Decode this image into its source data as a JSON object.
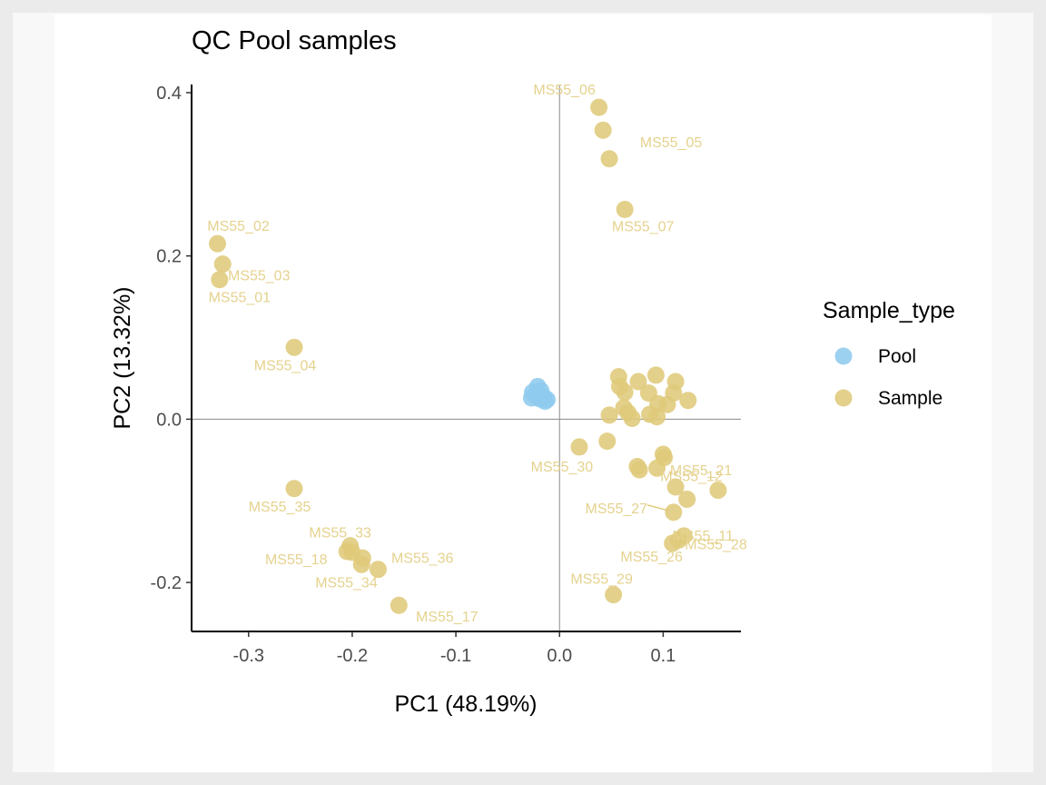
{
  "chart_data": {
    "type": "scatter",
    "title": "QC Pool samples",
    "xlabel": "PC1 (48.19%)",
    "ylabel": "PC2 (13.32%)",
    "xlim": [
      -0.355,
      0.175
    ],
    "ylim": [
      -0.26,
      0.41
    ],
    "xticks": [
      -0.3,
      -0.2,
      -0.1,
      0.0,
      0.1
    ],
    "xtick_labels": [
      "-0.3",
      "-0.2",
      "-0.1",
      "0.0",
      "0.1"
    ],
    "yticks": [
      -0.2,
      0.0,
      0.2,
      0.4
    ],
    "ytick_labels": [
      "-0.2",
      "0.0",
      "0.2",
      "0.4"
    ],
    "grid": false,
    "reference_lines": {
      "x": 0,
      "y": 0
    },
    "legend": {
      "title": "Sample_type",
      "position": "right",
      "entries": [
        {
          "label": "Pool",
          "color": "#8ecbee"
        },
        {
          "label": "Sample",
          "color": "#dfc97a"
        }
      ]
    },
    "colors": {
      "Pool": "#8ecbee",
      "Sample": "#dfc97a",
      "label": "#e5d28e"
    },
    "series": [
      {
        "name": "Pool",
        "points": [
          {
            "x": -0.021,
            "y": 0.04
          },
          {
            "x": -0.026,
            "y": 0.033
          },
          {
            "x": -0.018,
            "y": 0.035
          },
          {
            "x": -0.023,
            "y": 0.029
          },
          {
            "x": -0.015,
            "y": 0.027
          },
          {
            "x": -0.027,
            "y": 0.026
          },
          {
            "x": -0.019,
            "y": 0.025
          },
          {
            "x": -0.012,
            "y": 0.024
          },
          {
            "x": -0.014,
            "y": 0.022
          },
          {
            "x": -0.021,
            "y": 0.03
          }
        ]
      },
      {
        "name": "Sample",
        "points": [
          {
            "x": 0.038,
            "y": 0.382,
            "label": "MS55_06"
          },
          {
            "x": 0.042,
            "y": 0.354
          },
          {
            "x": 0.048,
            "y": 0.319,
            "label": "MS55_05"
          },
          {
            "x": 0.063,
            "y": 0.257,
            "label": "MS55_07"
          },
          {
            "x": -0.33,
            "y": 0.215,
            "label": "MS55_02"
          },
          {
            "x": -0.325,
            "y": 0.19,
            "label": "MS55_03"
          },
          {
            "x": -0.328,
            "y": 0.171,
            "label": "MS55_01"
          },
          {
            "x": -0.256,
            "y": 0.088,
            "label": "MS55_04"
          },
          {
            "x": 0.057,
            "y": 0.052
          },
          {
            "x": 0.093,
            "y": 0.054
          },
          {
            "x": 0.076,
            "y": 0.046
          },
          {
            "x": 0.112,
            "y": 0.046
          },
          {
            "x": 0.058,
            "y": 0.04
          },
          {
            "x": 0.063,
            "y": 0.033
          },
          {
            "x": 0.086,
            "y": 0.032
          },
          {
            "x": 0.11,
            "y": 0.032
          },
          {
            "x": 0.124,
            "y": 0.023
          },
          {
            "x": 0.095,
            "y": 0.019
          },
          {
            "x": 0.104,
            "y": 0.018
          },
          {
            "x": 0.062,
            "y": 0.014
          },
          {
            "x": 0.066,
            "y": 0.008
          },
          {
            "x": 0.048,
            "y": 0.005
          },
          {
            "x": 0.087,
            "y": 0.006
          },
          {
            "x": 0.07,
            "y": 0.001
          },
          {
            "x": 0.094,
            "y": 0.003
          },
          {
            "x": 0.019,
            "y": -0.034,
            "label": "MS55_30"
          },
          {
            "x": 0.046,
            "y": -0.027
          },
          {
            "x": 0.1,
            "y": -0.043
          },
          {
            "x": 0.101,
            "y": -0.047
          },
          {
            "x": 0.075,
            "y": -0.058
          },
          {
            "x": 0.077,
            "y": -0.062
          },
          {
            "x": 0.094,
            "y": -0.06,
            "label": "MS55_12"
          },
          {
            "x": 0.112,
            "y": -0.083,
            "label": "MS55_21"
          },
          {
            "x": 0.123,
            "y": -0.098
          },
          {
            "x": 0.153,
            "y": -0.087
          },
          {
            "x": 0.11,
            "y": -0.114,
            "label": "MS55_27"
          },
          {
            "x": 0.12,
            "y": -0.143,
            "label": "MS55_11"
          },
          {
            "x": 0.115,
            "y": -0.148,
            "label": "MS55_28"
          },
          {
            "x": 0.109,
            "y": -0.152,
            "label": "MS55_26"
          },
          {
            "x": 0.052,
            "y": -0.215,
            "label": "MS55_29"
          },
          {
            "x": -0.256,
            "y": -0.085,
            "label": "MS55_35"
          },
          {
            "x": -0.202,
            "y": -0.155,
            "label": "MS55_33"
          },
          {
            "x": -0.205,
            "y": -0.162,
            "label": "MS55_18"
          },
          {
            "x": -0.19,
            "y": -0.17
          },
          {
            "x": -0.191,
            "y": -0.178,
            "label": "MS55_36"
          },
          {
            "x": -0.175,
            "y": -0.184,
            "label": "MS55_34"
          },
          {
            "x": -0.155,
            "y": -0.228,
            "label": "MS55_17"
          },
          {
            "x": -0.2,
            "y": -0.163
          }
        ]
      }
    ]
  }
}
